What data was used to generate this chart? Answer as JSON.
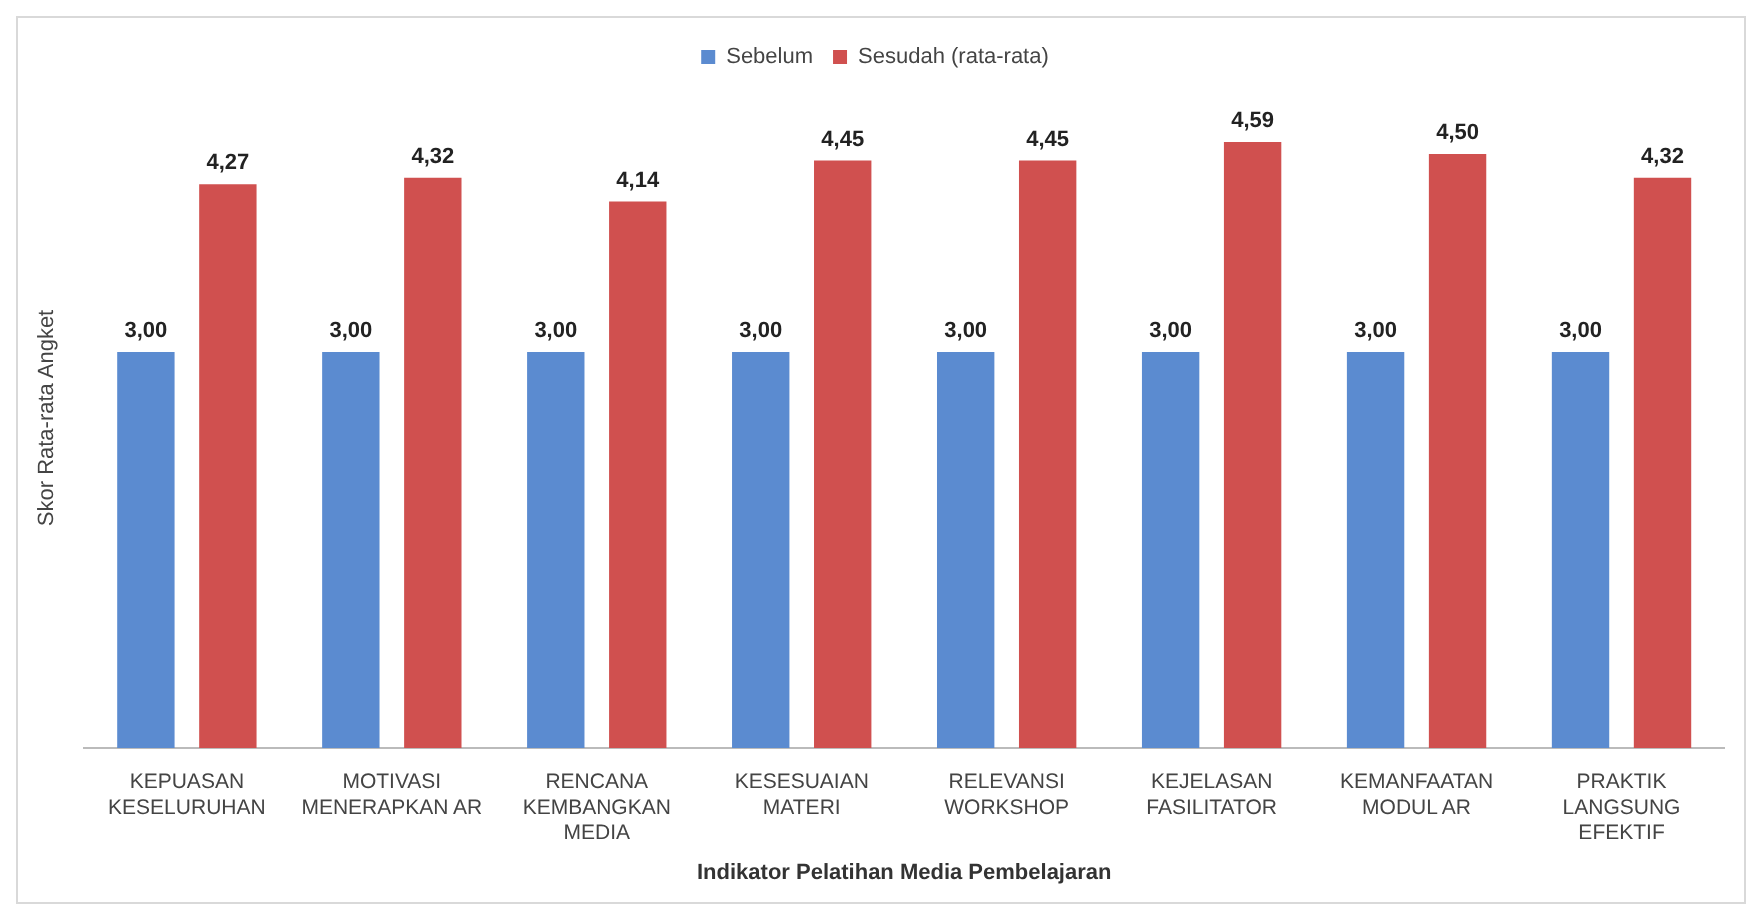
{
  "chart_data": {
    "type": "bar",
    "xlabel": "Indikator Pelatihan Media Pembelajaran",
    "ylabel": "Skor Rata-rata Angket",
    "legend": "top",
    "categories": [
      "KEPUASAN KESELURUHAN",
      "MOTIVASI MENERAPKAN AR",
      "RENCANA KEMBANGKAN MEDIA",
      "KESESUAIAN MATERI",
      "RELEVANSI WORKSHOP",
      "KEJELASAN FASILITATOR",
      "KEMANFAATAN MODUL AR",
      "PRAKTIK LANGSUNG EFEKTIF"
    ],
    "series": [
      {
        "name": "Sebelum",
        "color": "#5b8bd0",
        "values": [
          3.0,
          3.0,
          3.0,
          3.0,
          3.0,
          3.0,
          3.0,
          3.0
        ],
        "value_labels": [
          "3,00",
          "3,00",
          "3,00",
          "3,00",
          "3,00",
          "3,00",
          "3,00",
          "3,00"
        ]
      },
      {
        "name": "Sesudah (rata-rata)",
        "color": "#d0504f",
        "values": [
          4.27,
          4.32,
          4.14,
          4.45,
          4.45,
          4.59,
          4.5,
          4.32
        ],
        "value_labels": [
          "4,27",
          "4,32",
          "4,14",
          "4,45",
          "4,45",
          "4,59",
          "4,50",
          "4,32"
        ]
      }
    ],
    "grid": false
  }
}
